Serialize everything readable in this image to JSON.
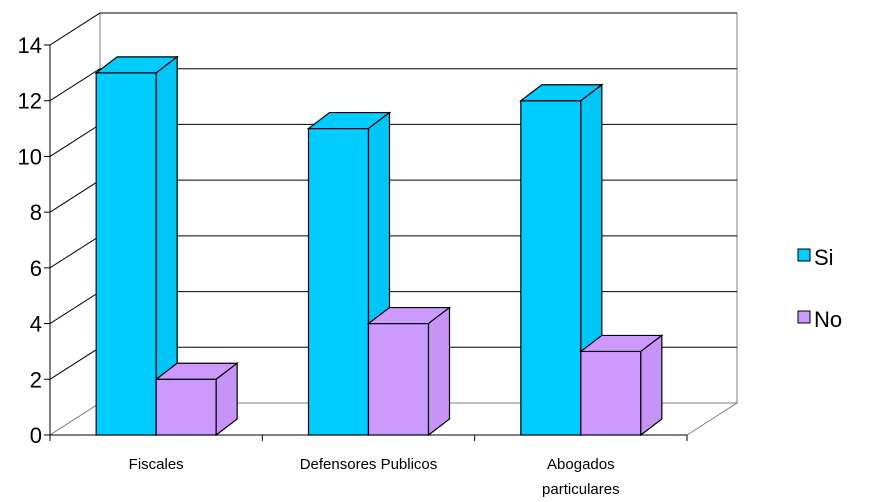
{
  "chart_data": {
    "type": "bar",
    "title": "",
    "xlabel": "",
    "ylabel": "",
    "categories": [
      [
        "Fiscales"
      ],
      [
        "Defensores Publicos"
      ],
      [
        "Abogados",
        "particulares"
      ]
    ],
    "series": [
      {
        "name": "Si",
        "values": [
          13,
          11,
          12
        ],
        "color": "#00ccff"
      },
      {
        "name": "No",
        "values": [
          2,
          4,
          3
        ],
        "color": "#cc99ff"
      }
    ],
    "ylim": [
      0,
      14
    ],
    "yticks": [
      0,
      2,
      4,
      6,
      8,
      10,
      12,
      14
    ],
    "grid": true,
    "legend": "right",
    "style": "3d-column"
  }
}
